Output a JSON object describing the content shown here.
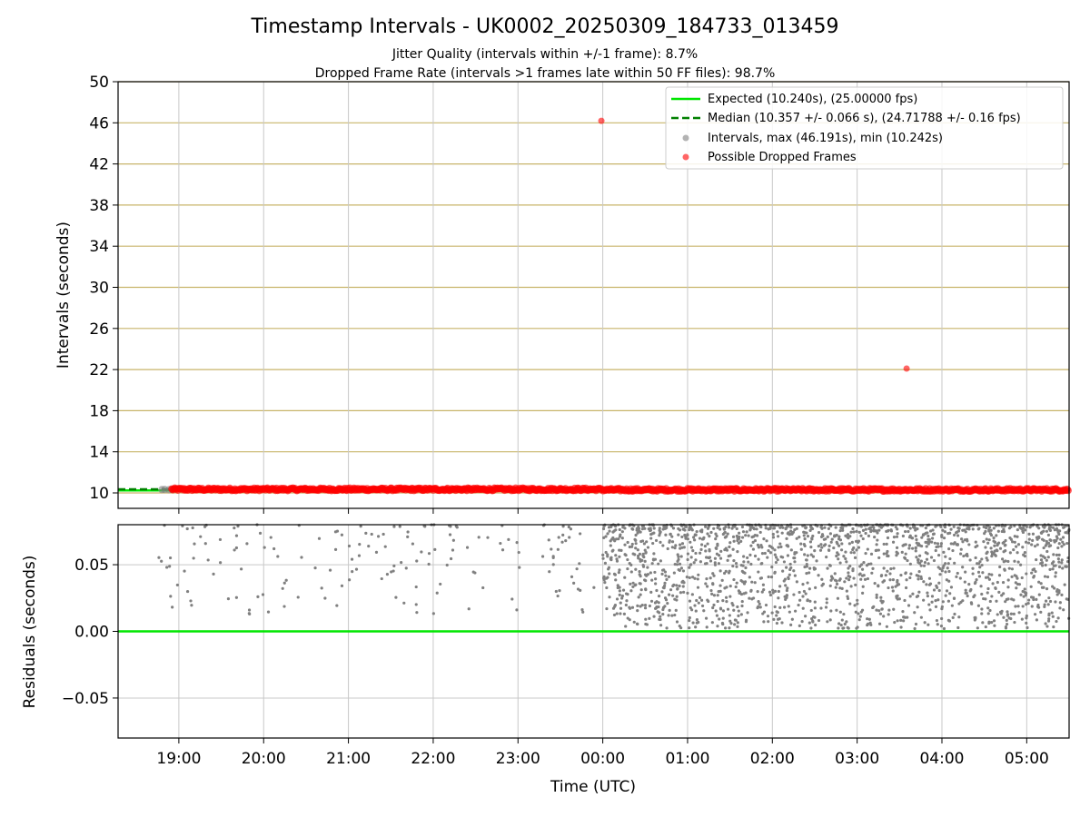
{
  "chart_data": [
    {
      "type": "scatter",
      "title": "Timestamp Intervals - UK0002_20250309_184733_013459",
      "subtitle_lines": [
        "Jitter Quality (intervals within +/-1 frame): 8.7%",
        "Dropped Frame Rate (intervals >1 frames late within 50 FF files): 98.7%"
      ],
      "xlabel": "",
      "ylabel": "Intervals (seconds)",
      "x_range": [
        "18:17",
        "05:30"
      ],
      "ylim": [
        8.5,
        50
      ],
      "yticks": [
        10,
        14,
        18,
        22,
        26,
        30,
        34,
        38,
        42,
        46,
        50
      ],
      "ytick_labels": [
        "10",
        "14",
        "18",
        "22",
        "26",
        "30",
        "34",
        "38",
        "42",
        "46",
        "50"
      ],
      "xticks": [
        "19:00",
        "20:00",
        "21:00",
        "22:00",
        "23:00",
        "00:00",
        "01:00",
        "02:00",
        "03:00",
        "04:00",
        "05:00"
      ],
      "grid": {
        "vertical": true,
        "horizontal_at_ticks": true
      },
      "legend": {
        "placement": "top-right",
        "entries": [
          {
            "label": "Expected (10.240s), (25.00000 fps)",
            "kind": "line",
            "color": "#00e600"
          },
          {
            "label": "Median (10.357 +/- 0.066 s), (24.71788 +/- 0.16 fps)",
            "kind": "dashed-line",
            "color": "#008000"
          },
          {
            "label": "Intervals, max (46.191s), min (10.242s)",
            "kind": "marker",
            "color": "#808080"
          },
          {
            "label": "Possible Dropped Frames",
            "kind": "marker",
            "color": "#ff0000"
          }
        ]
      },
      "expected_interval": 10.24,
      "median_interval": 10.357,
      "series": [
        {
          "name": "Intervals, max (46.191s), min (10.242s)",
          "color": "#808080",
          "description_points": [
            {
              "x": "18:48",
              "y": 10.33
            },
            {
              "x": "18:50",
              "y": 10.34
            },
            {
              "x": "18:53",
              "y": 10.32
            },
            {
              "x": "18:55",
              "y": 10.35
            }
          ]
        },
        {
          "name": "Possible Dropped Frames",
          "color": "#ff0000",
          "band": {
            "x_start": "18:55",
            "x_end": "05:30",
            "y_before_midnight": 10.35,
            "y_after_midnight": 10.3
          },
          "outliers": [
            {
              "x": "23:59",
              "y": 46.191
            },
            {
              "x": "03:35",
              "y": 22.1
            }
          ]
        }
      ]
    },
    {
      "type": "scatter",
      "title": "",
      "xlabel": "Time (UTC)",
      "ylabel": "Residuals (seconds)",
      "x_range": [
        "18:17",
        "05:30"
      ],
      "ylim": [
        -0.08,
        0.08
      ],
      "yticks": [
        -0.05,
        0.0,
        0.05
      ],
      "ytick_labels": [
        "−0.05",
        "0.00",
        "0.05"
      ],
      "xticks": [
        "19:00",
        "20:00",
        "21:00",
        "22:00",
        "23:00",
        "00:00",
        "01:00",
        "02:00",
        "03:00",
        "04:00",
        "05:00"
      ],
      "grid": {
        "vertical": true,
        "horizontal_at_ticks": true
      },
      "zero_line_color": "#00e600",
      "series": [
        {
          "name": "",
          "color": "#808080",
          "density_segments": [
            {
              "x_start": "18:45",
              "x_end": "23:55",
              "y_min": 0.01,
              "y_max": 0.08,
              "points_per_hour": 32
            },
            {
              "x_start": "00:00",
              "x_end": "05:30",
              "y_min": 0.002,
              "y_max": 0.08,
              "points_per_hour": 330
            }
          ]
        }
      ]
    }
  ]
}
